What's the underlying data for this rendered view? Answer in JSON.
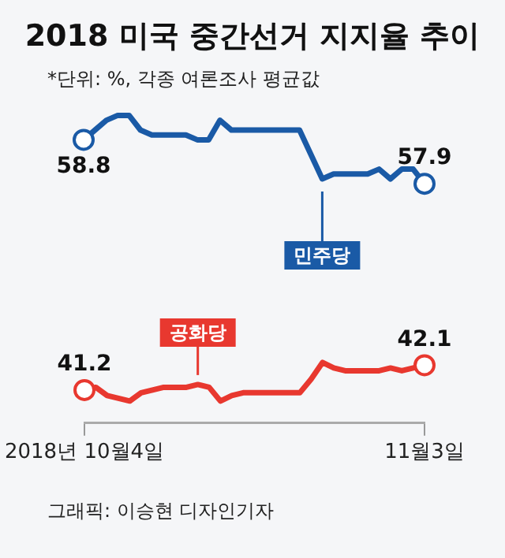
{
  "chart_data": [
    {
      "type": "line",
      "title": "2018 미국 중간선거 지지율 추이",
      "subtitle": "*단위: %, 각종 여론조사 평균값",
      "tick_labels": false,
      "grid": false,
      "series": [
        {
          "name": "민주당",
          "color": "#1a5aa6",
          "values": [
            58.8,
            59.0,
            59.2,
            59.3,
            59.3,
            59.0,
            58.9,
            58.9,
            58.9,
            58.9,
            58.8,
            58.8,
            59.2,
            59.0,
            59.0,
            59.0,
            59.0,
            59.0,
            59.0,
            59.0,
            58.5,
            58.0,
            58.1,
            58.1,
            58.1,
            58.1,
            58.2,
            58.0,
            58.2,
            58.2,
            57.9
          ],
          "value_labels": [
            "58.8",
            null,
            null,
            null,
            null,
            null,
            null,
            null,
            null,
            null,
            null,
            null,
            null,
            null,
            null,
            null,
            null,
            null,
            null,
            null,
            null,
            null,
            null,
            null,
            null,
            null,
            null,
            null,
            null,
            null,
            "57.9"
          ]
        }
      ]
    },
    {
      "type": "line",
      "categories": [
        "2018년 10월4일",
        null,
        null,
        null,
        null,
        null,
        null,
        null,
        null,
        null,
        null,
        null,
        null,
        null,
        null,
        null,
        null,
        null,
        null,
        null,
        null,
        null,
        null,
        null,
        null,
        null,
        null,
        null,
        null,
        null,
        "11월3일"
      ],
      "tick_labels": "x",
      "grid": false,
      "annotations": [
        "그래픽: 이승현 디자인기자"
      ],
      "series": [
        {
          "name": "공화당",
          "color": "#e8382f",
          "values": [
            41.2,
            41.3,
            41.0,
            40.9,
            40.8,
            41.1,
            41.2,
            41.3,
            41.3,
            41.3,
            41.4,
            41.3,
            40.8,
            41.0,
            41.1,
            41.1,
            41.1,
            41.1,
            41.1,
            41.1,
            41.6,
            42.2,
            42.0,
            41.9,
            41.9,
            41.9,
            41.9,
            42.0,
            41.9,
            42.0,
            42.1
          ],
          "value_labels": [
            "41.2",
            null,
            null,
            null,
            null,
            null,
            null,
            null,
            null,
            null,
            null,
            null,
            null,
            null,
            null,
            null,
            null,
            null,
            null,
            null,
            null,
            null,
            null,
            null,
            null,
            null,
            null,
            null,
            null,
            null,
            "42.1"
          ]
        }
      ]
    }
  ]
}
